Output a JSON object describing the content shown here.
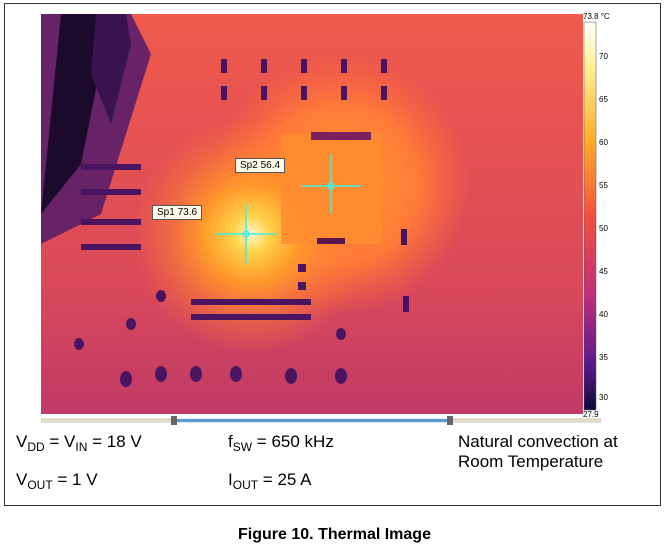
{
  "thermal": {
    "spots": [
      {
        "id": "Sp1",
        "label": "Sp1 73.6"
      },
      {
        "id": "Sp2",
        "label": "Sp2 56.4"
      }
    ],
    "scale": {
      "max_label": "73.8 °C",
      "min_label": "27.9",
      "ticks": [
        "70",
        "65",
        "60",
        "55",
        "50",
        "45",
        "40",
        "35",
        "30"
      ]
    }
  },
  "conditions": {
    "vdd": {
      "prefix": "V",
      "sub1": "DD",
      "mid": " = V",
      "sub2": "IN",
      "suffix": " = 18 V"
    },
    "vout": {
      "prefix": "V",
      "sub": "OUT",
      "suffix": " = 1 V"
    },
    "fsw": {
      "prefix": "f",
      "sub": "SW",
      "suffix": " = 650 kHz"
    },
    "iout": {
      "prefix": "I",
      "sub": "OUT",
      "suffix": " = 25 A"
    },
    "natural": "Natural convection at Room Temperature"
  },
  "caption": "Figure 10. Thermal Image"
}
